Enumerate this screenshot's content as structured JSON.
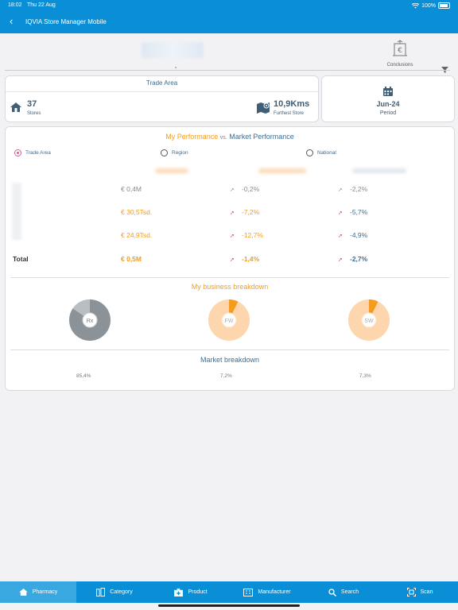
{
  "status": {
    "time": "18:02",
    "date": "Thu 22 Aug",
    "battery": "100%"
  },
  "app": {
    "title": "IQVIA Store Manager Mobile"
  },
  "conclusions_label": "Conclusions",
  "trade_area": {
    "title": "Trade Area",
    "stores_value": "37",
    "stores_label": "Stores",
    "furthest_value": "10,9Kms",
    "furthest_label": "Furthest Store"
  },
  "period": {
    "value": "Jun-24",
    "label": "Period"
  },
  "performance": {
    "title_mine": "My Performance",
    "title_vs": "vs.",
    "title_market": "Market Performance",
    "radios": [
      {
        "label": "Trade Area",
        "selected": true
      },
      {
        "label": "Region",
        "selected": false
      },
      {
        "label": "National",
        "selected": false
      }
    ],
    "rows": [
      {
        "value": "€ 0,4M",
        "trade": "-0,2%",
        "nat": "-2,2%"
      },
      {
        "value": "€ 30,5Tsd.",
        "trade": "-7,2%",
        "nat": "-5,7%"
      },
      {
        "value": "€ 24,9Tsd.",
        "trade": "-12,7%",
        "nat": "-4,9%"
      }
    ],
    "total": {
      "label": "Total",
      "value": "€ 0,5M",
      "trade": "-1,4%",
      "nat": "-2,7%"
    }
  },
  "business_breakdown": {
    "title": "My business breakdown",
    "donuts": [
      {
        "label": "Rx",
        "share_pct": 85.4
      },
      {
        "label": "FW",
        "share_pct": 7.2
      },
      {
        "label": "SW",
        "share_pct": 7.3
      }
    ]
  },
  "market_breakdown": {
    "title": "Market breakdown",
    "values": [
      "85,4%",
      "7,2%",
      "7,3%"
    ]
  },
  "nav": [
    {
      "label": "Pharmacy",
      "icon": "home-icon",
      "active": true
    },
    {
      "label": "Category",
      "icon": "category-icon",
      "active": false
    },
    {
      "label": "Product",
      "icon": "product-icon",
      "active": false
    },
    {
      "label": "Manufacturer",
      "icon": "manufacturer-icon",
      "active": false
    },
    {
      "label": "Search",
      "icon": "search-icon",
      "active": false
    },
    {
      "label": "Scan",
      "icon": "scan-icon",
      "active": false
    }
  ],
  "colors": {
    "primary": "#0a8fd6",
    "accent_orange": "#f39c1f",
    "negative_red": "#d93a3a",
    "text_blue": "#3c6e93"
  }
}
